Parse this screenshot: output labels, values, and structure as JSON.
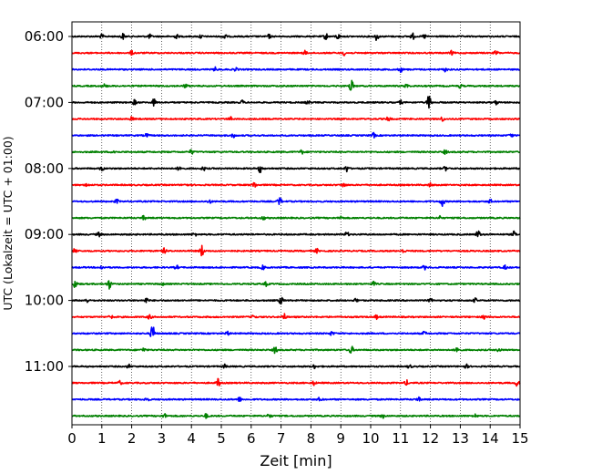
{
  "chart_data": {
    "type": "line",
    "title": "",
    "xlabel": "Zeit  [min]",
    "ylabel": "UTC (Lokalzeit = UTC + 01:00)",
    "xlim": [
      0,
      15
    ],
    "xticks": [
      0,
      1,
      2,
      3,
      4,
      5,
      6,
      7,
      8,
      9,
      10,
      11,
      12,
      13,
      14,
      15
    ],
    "row_interval_min": 15,
    "start_time": "06:00",
    "end_time": "11:45",
    "time_labels": [
      "06:00",
      "07:00",
      "08:00",
      "09:00",
      "10:00",
      "11:00"
    ],
    "grid": "vertical dotted at each minute",
    "colors_cycle": [
      "#000000",
      "#ff0000",
      "#0000ff",
      "#008000"
    ],
    "rows": [
      {
        "start": "06:00",
        "color": "#000000",
        "events": [
          [
            1.0,
            0.3
          ],
          [
            1.7,
            0.45
          ],
          [
            2.6,
            0.3
          ],
          [
            3.5,
            0.3
          ],
          [
            4.3,
            0.3
          ],
          [
            5.1,
            0.5
          ],
          [
            6.6,
            0.3
          ],
          [
            8.5,
            0.5
          ],
          [
            8.9,
            0.4
          ],
          [
            10.2,
            0.6
          ],
          [
            11.4,
            0.5
          ],
          [
            11.8,
            0.3
          ]
        ]
      },
      {
        "start": "06:15",
        "color": "#ff0000",
        "events": [
          [
            2.0,
            0.3
          ],
          [
            7.8,
            0.3
          ],
          [
            9.1,
            0.35
          ],
          [
            12.7,
            0.3
          ],
          [
            14.2,
            0.35
          ]
        ]
      },
      {
        "start": "06:30",
        "color": "#0000ff",
        "events": [
          [
            4.8,
            0.3
          ],
          [
            5.5,
            0.3
          ],
          [
            11.0,
            0.4
          ],
          [
            12.5,
            0.3
          ]
        ]
      },
      {
        "start": "06:45",
        "color": "#008000",
        "events": [
          [
            1.1,
            0.3
          ],
          [
            3.8,
            0.3
          ],
          [
            9.35,
            1.0
          ],
          [
            11.2,
            0.3
          ],
          [
            13.0,
            0.3
          ]
        ]
      },
      {
        "start": "07:00",
        "color": "#000000",
        "events": [
          [
            2.1,
            0.4
          ],
          [
            2.75,
            0.55
          ],
          [
            5.7,
            0.3
          ],
          [
            7.9,
            0.3
          ],
          [
            11.0,
            0.3
          ],
          [
            11.95,
            1.25
          ],
          [
            14.2,
            0.3
          ]
        ]
      },
      {
        "start": "07:15",
        "color": "#ff0000",
        "events": [
          [
            2.0,
            0.3
          ],
          [
            5.3,
            0.3
          ],
          [
            10.6,
            0.35
          ],
          [
            12.4,
            0.3
          ]
        ]
      },
      {
        "start": "07:30",
        "color": "#0000ff",
        "events": [
          [
            2.5,
            0.3
          ],
          [
            5.4,
            0.3
          ],
          [
            10.1,
            0.35
          ],
          [
            14.7,
            0.3
          ]
        ]
      },
      {
        "start": "07:45",
        "color": "#008000",
        "events": [
          [
            1.4,
            0.3
          ],
          [
            4.0,
            0.35
          ],
          [
            7.7,
            0.3
          ],
          [
            12.5,
            0.3
          ]
        ]
      },
      {
        "start": "08:00",
        "color": "#000000",
        "events": [
          [
            1.0,
            0.35
          ],
          [
            3.6,
            0.4
          ],
          [
            4.4,
            0.3
          ],
          [
            6.3,
            0.6
          ],
          [
            9.2,
            0.5
          ],
          [
            12.5,
            0.3
          ]
        ]
      },
      {
        "start": "08:15",
        "color": "#ff0000",
        "events": [
          [
            0.5,
            0.3
          ],
          [
            3.8,
            0.3
          ],
          [
            6.1,
            0.5
          ],
          [
            9.1,
            0.35
          ],
          [
            12.0,
            0.3
          ]
        ]
      },
      {
        "start": "08:30",
        "color": "#0000ff",
        "events": [
          [
            1.5,
            0.3
          ],
          [
            4.6,
            0.3
          ],
          [
            6.95,
            0.7
          ],
          [
            12.4,
            0.75
          ],
          [
            14.0,
            0.3
          ]
        ]
      },
      {
        "start": "08:45",
        "color": "#008000",
        "events": [
          [
            2.4,
            0.3
          ],
          [
            6.4,
            0.3
          ],
          [
            9.0,
            0.3
          ],
          [
            12.3,
            0.3
          ]
        ]
      },
      {
        "start": "09:00",
        "color": "#000000",
        "events": [
          [
            0.9,
            0.3
          ],
          [
            4.1,
            0.3
          ],
          [
            9.2,
            0.4
          ],
          [
            13.6,
            0.65
          ],
          [
            14.8,
            0.45
          ]
        ]
      },
      {
        "start": "09:15",
        "color": "#ff0000",
        "events": [
          [
            0.1,
            0.4
          ],
          [
            3.1,
            0.4
          ],
          [
            4.35,
            0.9
          ],
          [
            8.2,
            0.3
          ],
          [
            11.1,
            0.3
          ]
        ]
      },
      {
        "start": "09:30",
        "color": "#0000ff",
        "events": [
          [
            1.0,
            0.3
          ],
          [
            3.5,
            0.3
          ],
          [
            6.4,
            0.3
          ],
          [
            11.8,
            0.3
          ],
          [
            14.5,
            0.3
          ]
        ]
      },
      {
        "start": "09:45",
        "color": "#008000",
        "events": [
          [
            0.1,
            0.6
          ],
          [
            1.25,
            0.75
          ],
          [
            3.0,
            0.3
          ],
          [
            6.5,
            0.3
          ],
          [
            10.1,
            0.3
          ]
        ]
      },
      {
        "start": "10:00",
        "color": "#000000",
        "events": [
          [
            0.5,
            0.3
          ],
          [
            2.5,
            0.4
          ],
          [
            7.0,
            0.6
          ],
          [
            9.5,
            0.3
          ],
          [
            12.0,
            0.3
          ],
          [
            13.5,
            0.3
          ]
        ]
      },
      {
        "start": "10:15",
        "color": "#ff0000",
        "events": [
          [
            1.3,
            0.3
          ],
          [
            2.6,
            0.35
          ],
          [
            6.1,
            0.35
          ],
          [
            7.1,
            0.5
          ],
          [
            10.2,
            0.3
          ],
          [
            13.8,
            0.3
          ]
        ]
      },
      {
        "start": "10:30",
        "color": "#0000ff",
        "events": [
          [
            2.7,
            1.35
          ],
          [
            5.2,
            0.3
          ],
          [
            8.7,
            0.3
          ],
          [
            11.8,
            0.3
          ]
        ]
      },
      {
        "start": "10:45",
        "color": "#008000",
        "events": [
          [
            2.4,
            0.3
          ],
          [
            6.8,
            0.55
          ],
          [
            9.35,
            0.6
          ],
          [
            12.9,
            0.75
          ],
          [
            14.3,
            0.3
          ]
        ]
      },
      {
        "start": "11:00",
        "color": "#000000",
        "events": [
          [
            1.9,
            0.3
          ],
          [
            5.1,
            0.3
          ],
          [
            8.1,
            0.3
          ],
          [
            11.3,
            0.3
          ],
          [
            13.2,
            0.3
          ]
        ]
      },
      {
        "start": "11:15",
        "color": "#ff0000",
        "events": [
          [
            1.6,
            0.3
          ],
          [
            4.9,
            0.65
          ],
          [
            8.1,
            0.3
          ],
          [
            11.2,
            0.4
          ],
          [
            14.9,
            0.45
          ]
        ]
      },
      {
        "start": "11:30",
        "color": "#0000ff",
        "events": [
          [
            2.5,
            0.3
          ],
          [
            5.6,
            0.35
          ],
          [
            8.3,
            0.3
          ],
          [
            11.6,
            0.3
          ]
        ]
      },
      {
        "start": "11:45",
        "color": "#008000",
        "events": [
          [
            3.1,
            0.3
          ],
          [
            4.5,
            0.35
          ],
          [
            6.6,
            0.3
          ],
          [
            10.4,
            0.3
          ],
          [
            13.5,
            0.3
          ]
        ]
      }
    ]
  }
}
